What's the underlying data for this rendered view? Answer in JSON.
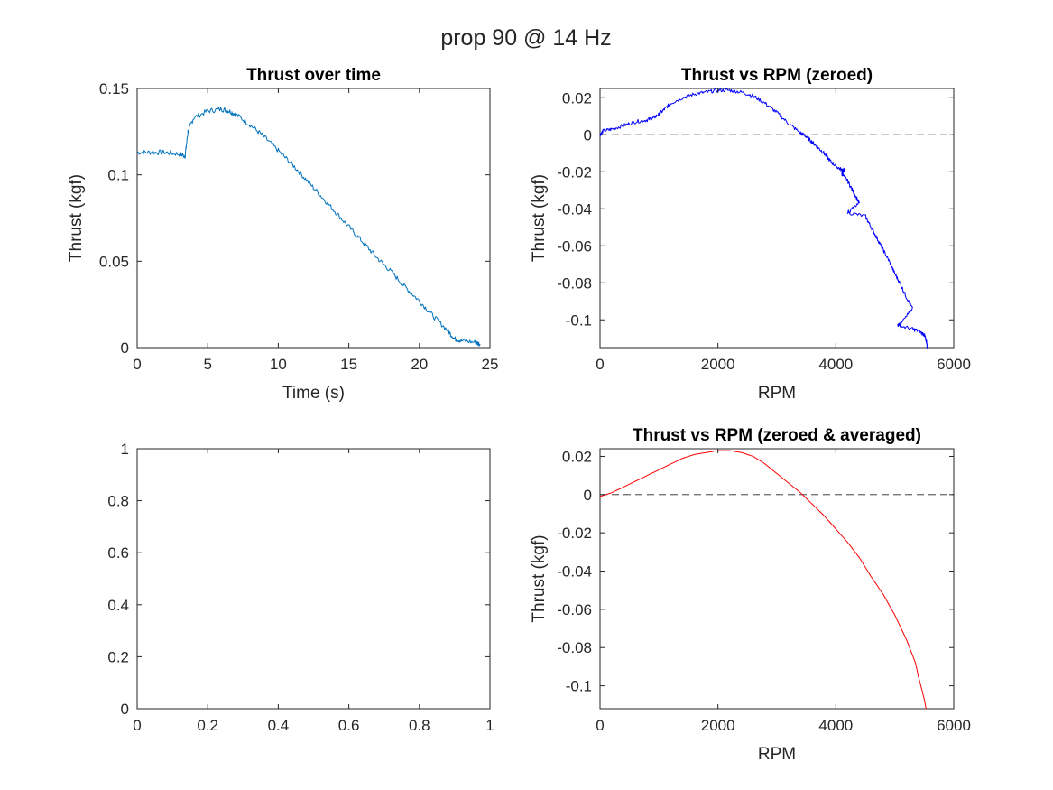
{
  "figure": {
    "title": "prop 90 @ 14 Hz"
  },
  "chart_data": [
    {
      "id": "p1",
      "type": "line",
      "title": "Thrust over time",
      "xlabel": "Time (s)",
      "ylabel": "Thrust (kgf)",
      "xlim": [
        0,
        25
      ],
      "ylim": [
        0,
        0.15
      ],
      "xticks": [
        0,
        5,
        10,
        15,
        20,
        25
      ],
      "yticks": [
        0,
        0.05,
        0.1,
        0.15
      ],
      "xticklabels": [
        "0",
        "5",
        "10",
        "15",
        "20",
        "25"
      ],
      "yticklabels": [
        "0",
        "0.05",
        "0.1",
        "0.15"
      ],
      "zero_line": false,
      "series": [
        {
          "color": "#0072BD",
          "noise": 0.0015,
          "x": [
            0,
            1,
            2,
            3,
            3.4,
            3.6,
            4,
            5,
            6,
            6.5,
            7,
            8,
            9,
            10,
            11,
            12,
            13,
            14,
            15,
            16,
            17,
            18,
            19,
            20,
            21,
            22,
            22.5,
            23,
            24,
            24.3
          ],
          "y": [
            0.113,
            0.113,
            0.113,
            0.112,
            0.111,
            0.125,
            0.133,
            0.137,
            0.138,
            0.137,
            0.135,
            0.129,
            0.122,
            0.114,
            0.106,
            0.097,
            0.088,
            0.079,
            0.07,
            0.061,
            0.052,
            0.044,
            0.035,
            0.027,
            0.018,
            0.01,
            0.005,
            0.004,
            0.003,
            0.002
          ]
        }
      ]
    },
    {
      "id": "p2",
      "type": "line",
      "title": "Thrust vs RPM (zeroed)",
      "xlabel": "RPM",
      "ylabel": "Thrust (kgf)",
      "xlim": [
        0,
        6000
      ],
      "ylim": [
        -0.115,
        0.025
      ],
      "xticks": [
        0,
        2000,
        4000,
        6000
      ],
      "yticks": [
        0.02,
        0,
        -0.02,
        -0.04,
        -0.06,
        -0.08,
        -0.1
      ],
      "xticklabels": [
        "0",
        "2000",
        "4000",
        "6000"
      ],
      "yticklabels": [
        "0.02",
        "0",
        "-0.02",
        "-0.04",
        "-0.06",
        "-0.08",
        "-0.1"
      ],
      "zero_line": true,
      "series": [
        {
          "color": "#0000FF",
          "noise": 0.001,
          "x": [
            0,
            50,
            200,
            400,
            600,
            800,
            900,
            1000,
            1100,
            1200,
            1400,
            1600,
            1800,
            2000,
            2200,
            2400,
            2600,
            2800,
            3000,
            3200,
            3400,
            3500,
            3600,
            3700,
            3800,
            3900,
            4000,
            4100,
            4150,
            4100,
            4200,
            4300,
            4400,
            4200,
            4500,
            4600,
            4700,
            4800,
            4900,
            5000,
            5100,
            5200,
            5300,
            5100,
            5050,
            5300,
            5400,
            5500,
            5520,
            5540,
            5550
          ],
          "y": [
            0.0,
            0.002,
            0.003,
            0.005,
            0.007,
            0.008,
            0.009,
            0.011,
            0.014,
            0.017,
            0.02,
            0.022,
            0.023,
            0.024,
            0.024,
            0.023,
            0.021,
            0.017,
            0.012,
            0.006,
            0.001,
            -0.001,
            -0.004,
            -0.007,
            -0.01,
            -0.014,
            -0.017,
            -0.019,
            -0.019,
            -0.021,
            -0.025,
            -0.031,
            -0.037,
            -0.042,
            -0.044,
            -0.05,
            -0.056,
            -0.062,
            -0.068,
            -0.075,
            -0.081,
            -0.088,
            -0.094,
            -0.102,
            -0.103,
            -0.105,
            -0.106,
            -0.108,
            -0.11,
            -0.112,
            -0.115
          ]
        }
      ]
    },
    {
      "id": "p3",
      "type": "line",
      "title": "",
      "xlabel": "",
      "ylabel": "",
      "xlim": [
        0,
        1
      ],
      "ylim": [
        0,
        1
      ],
      "xticks": [
        0,
        0.2,
        0.4,
        0.6,
        0.8,
        1
      ],
      "yticks": [
        0,
        0.2,
        0.4,
        0.6,
        0.8,
        1
      ],
      "xticklabels": [
        "0",
        "0.2",
        "0.4",
        "0.6",
        "0.8",
        "1"
      ],
      "yticklabels": [
        "0",
        "0.2",
        "0.4",
        "0.6",
        "0.8",
        "1"
      ],
      "zero_line": false,
      "series": []
    },
    {
      "id": "p4",
      "type": "line",
      "title": "Thrust vs RPM (zeroed & averaged)",
      "xlabel": "RPM",
      "ylabel": "Thrust (kgf)",
      "xlim": [
        0,
        6000
      ],
      "ylim": [
        -0.112,
        0.024
      ],
      "xticks": [
        0,
        2000,
        4000,
        6000
      ],
      "yticks": [
        0.02,
        0,
        -0.02,
        -0.04,
        -0.06,
        -0.08,
        -0.1
      ],
      "xticklabels": [
        "0",
        "2000",
        "4000",
        "6000"
      ],
      "yticklabels": [
        "0.02",
        "0",
        "-0.02",
        "-0.04",
        "-0.06",
        "-0.08",
        "-0.1"
      ],
      "zero_line": true,
      "series": [
        {
          "color": "#FF0000",
          "noise": 0,
          "x": [
            0,
            200,
            400,
            600,
            800,
            1000,
            1200,
            1400,
            1600,
            1800,
            2000,
            2200,
            2400,
            2600,
            2800,
            3000,
            3200,
            3400,
            3600,
            3800,
            4000,
            4200,
            4400,
            4500,
            4600,
            4800,
            5000,
            5200,
            5350,
            5400,
            5450,
            5500,
            5530
          ],
          "y": [
            -0.001,
            0.001,
            0.004,
            0.007,
            0.01,
            0.013,
            0.016,
            0.019,
            0.021,
            0.022,
            0.023,
            0.023,
            0.022,
            0.02,
            0.016,
            0.011,
            0.006,
            0.001,
            -0.005,
            -0.011,
            -0.018,
            -0.025,
            -0.033,
            -0.038,
            -0.043,
            -0.052,
            -0.063,
            -0.076,
            -0.088,
            -0.095,
            -0.101,
            -0.107,
            -0.112
          ]
        }
      ]
    }
  ]
}
